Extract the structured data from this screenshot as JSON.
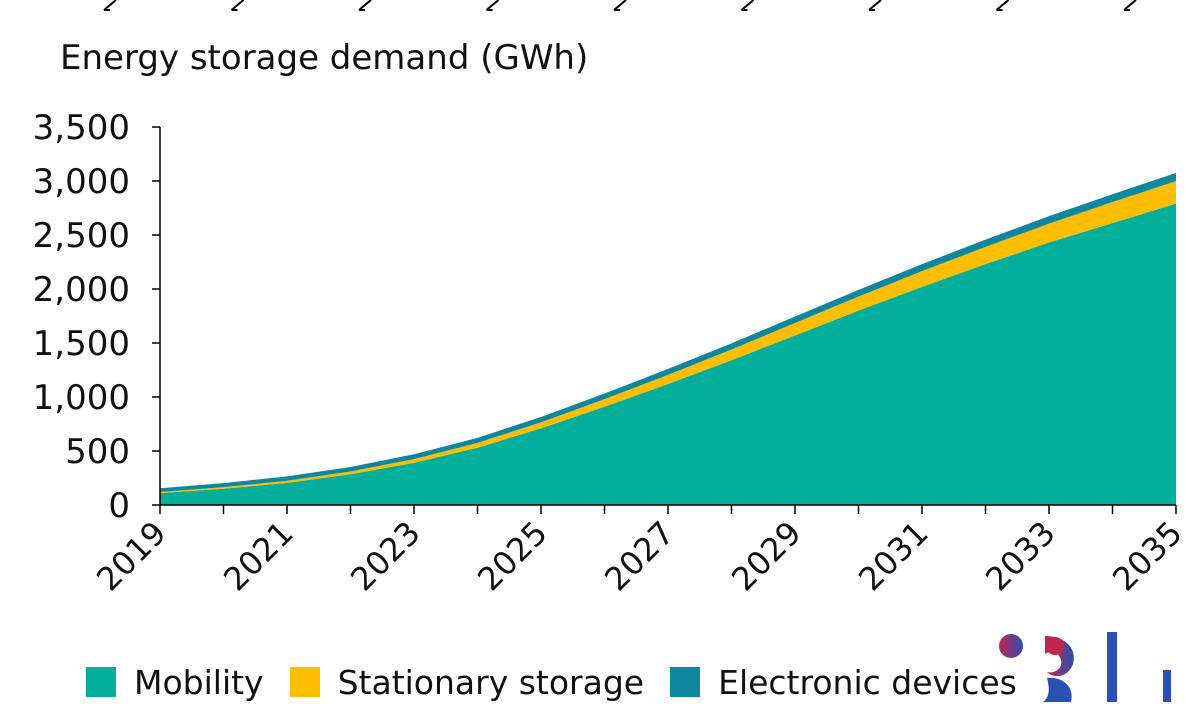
{
  "chart_data": {
    "type": "area",
    "stacked": true,
    "ylabel": "Energy storage demand (GWh)",
    "xlabel": "",
    "x": [
      2019,
      2020,
      2021,
      2022,
      2023,
      2024,
      2025,
      2026,
      2027,
      2028,
      2029,
      2030,
      2031,
      2032,
      2033,
      2034,
      2035
    ],
    "x_tick_labels": [
      "2019",
      "2021",
      "2023",
      "2025",
      "2027",
      "2029",
      "2031",
      "2033",
      "2035"
    ],
    "y_tick_values": [
      0,
      500,
      1000,
      1500,
      2000,
      2500,
      3000,
      3500
    ],
    "y_tick_labels": [
      "0",
      "500",
      "1,000",
      "1,500",
      "2,000",
      "2,500",
      "3,000",
      "3,500"
    ],
    "ylim": [
      0,
      3500
    ],
    "grid": false,
    "legend_position": "bottom",
    "series": [
      {
        "name": "Mobility",
        "color": "#00ae99",
        "values": [
          110,
          150,
          205,
          285,
          390,
          530,
          710,
          910,
          1120,
          1340,
          1570,
          1800,
          2020,
          2230,
          2430,
          2610,
          2790
        ]
      },
      {
        "name": "Stationary storage",
        "color": "#ffbe00",
        "values": [
          10,
          15,
          20,
          25,
          35,
          45,
          55,
          70,
          85,
          100,
          115,
          130,
          145,
          160,
          175,
          195,
          210
        ]
      },
      {
        "name": "Electronic devices",
        "color": "#0e86a0",
        "values": [
          35,
          37,
          40,
          42,
          45,
          47,
          50,
          52,
          55,
          57,
          60,
          62,
          65,
          67,
          70,
          72,
          75
        ]
      }
    ]
  }
}
